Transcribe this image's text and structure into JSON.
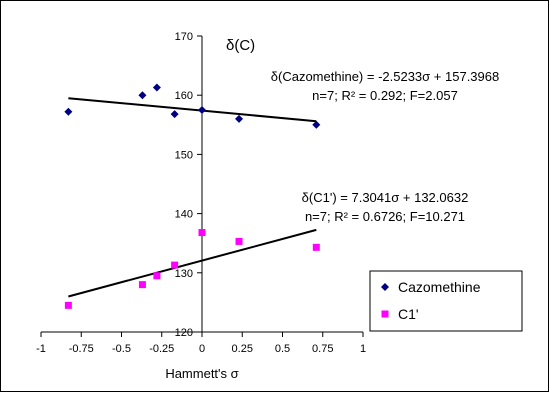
{
  "chart_data": {
    "type": "scatter",
    "title": "δ(C)",
    "xlabel": "Hammett's σ",
    "ylabel": "",
    "xlim": [
      -1,
      1
    ],
    "ylim": [
      120,
      170
    ],
    "x_ticks": [
      -1,
      -0.75,
      -0.5,
      -0.25,
      0,
      0.25,
      0.5,
      0.75,
      1
    ],
    "x_tick_labels": [
      "-1",
      "-0.75",
      "-0.5",
      "-0.25",
      "0",
      "0.25",
      "0.5",
      "0.75",
      "1"
    ],
    "y_ticks": [
      120,
      130,
      140,
      150,
      160,
      170
    ],
    "y_tick_labels": [
      "120",
      "130",
      "140",
      "150",
      "160",
      "170"
    ],
    "grid": false,
    "legend_position": "bottom-right",
    "series": [
      {
        "name": "Cazomethine",
        "color": "#000080",
        "marker": "diamond",
        "x": [
          -0.83,
          -0.37,
          -0.28,
          -0.17,
          0.0,
          0.23,
          0.71
        ],
        "y": [
          157.2,
          160.0,
          161.3,
          156.8,
          157.5,
          156.0,
          155.0
        ],
        "fit": {
          "slope": -2.5233,
          "intercept": 157.3968,
          "x_range": [
            -0.83,
            0.71
          ]
        }
      },
      {
        "name": "C1'",
        "color": "#ff00ff",
        "marker": "square",
        "x": [
          -0.83,
          -0.37,
          -0.28,
          -0.17,
          0.0,
          0.23,
          0.71
        ],
        "y": [
          124.5,
          128.0,
          129.5,
          131.3,
          136.8,
          135.3,
          134.3
        ],
        "fit": {
          "slope": 7.3041,
          "intercept": 132.0632,
          "x_range": [
            -0.83,
            0.71
          ]
        }
      }
    ],
    "annotations": [
      {
        "id": "eq1_line1",
        "text": "δ(Cazomethine) = -2.5233σ + 157.3968"
      },
      {
        "id": "eq1_line2",
        "text": "n=7; R² = 0.292; F=2.057"
      },
      {
        "id": "eq2_line1",
        "text": "δ(C1') = 7.3041σ + 132.0632"
      },
      {
        "id": "eq2_line2",
        "text": "n=7; R² = 0.6726; F=10.271"
      }
    ]
  }
}
